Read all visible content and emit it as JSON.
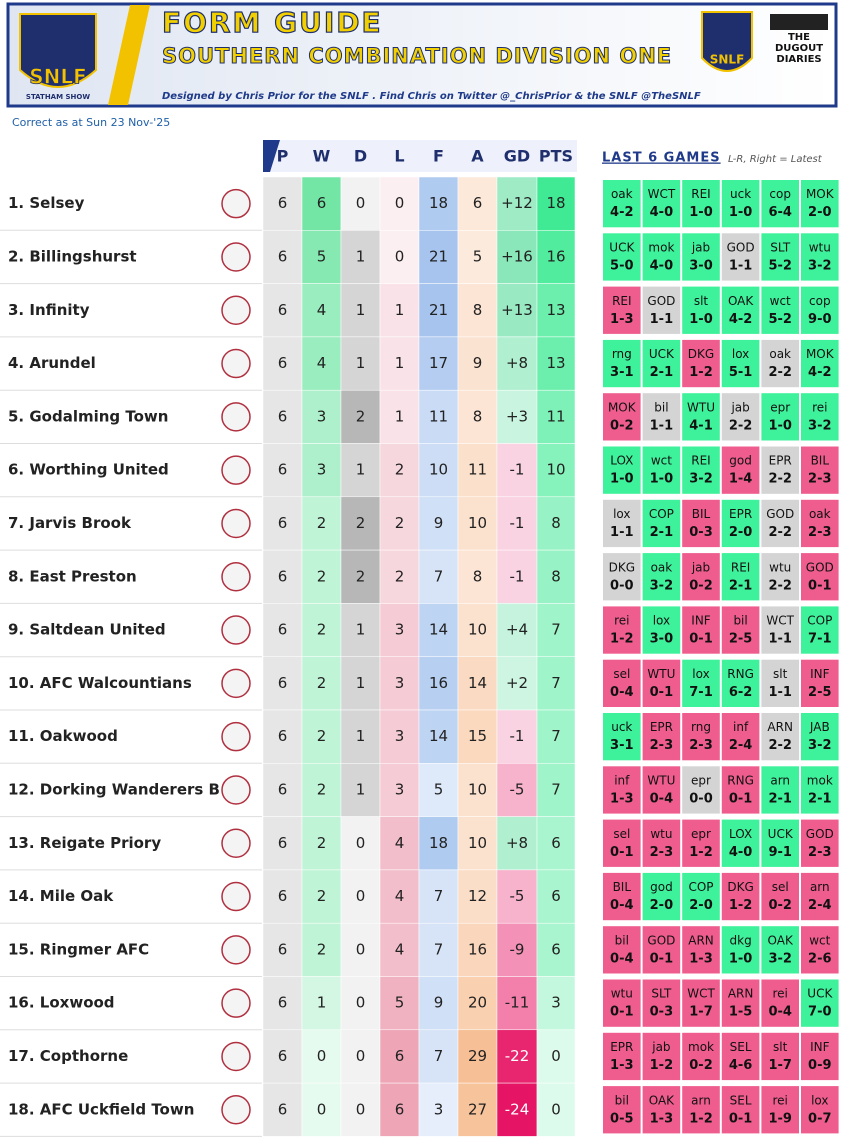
{
  "header": {
    "title": "FORM GUIDE",
    "subtitle": "SOUTHERN COMBINATION DIVISION ONE",
    "credit": "Designed by Chris Prior for the SNLF . Find Chris on Twitter @_ChrisPrior & the SNLF @TheSNLF",
    "logo_left": "SNLF",
    "logo_left_sub": "STATHAM SHOW",
    "logo_right": "SNLF",
    "logo_right2": "THE DUGOUT DIARIES"
  },
  "updated": "Correct as at Sun 23 Nov-'25",
  "columns": [
    "P",
    "W",
    "D",
    "L",
    "F",
    "A",
    "GD",
    "PTS"
  ],
  "last_games": {
    "title": "LAST 6 GAMES",
    "note": "L-R, Right = Latest"
  },
  "rows": [
    {
      "team": "1. Selsey",
      "stats": [
        6,
        6,
        0,
        0,
        18,
        6,
        "+12",
        18
      ],
      "games": [
        {
          "opp": "oak",
          "score": "4-2"
        },
        {
          "opp": "WCT",
          "score": "4-0"
        },
        {
          "opp": "REI",
          "score": "1-0"
        },
        {
          "opp": "uck",
          "score": "1-0"
        },
        {
          "opp": "cop",
          "score": "6-4"
        },
        {
          "opp": "MOK",
          "score": "2-0"
        }
      ]
    },
    {
      "team": "2. Billingshurst",
      "stats": [
        6,
        5,
        1,
        0,
        21,
        5,
        "+16",
        16
      ],
      "games": [
        {
          "opp": "UCK",
          "score": "5-0"
        },
        {
          "opp": "mok",
          "score": "4-0"
        },
        {
          "opp": "jab",
          "score": "3-0"
        },
        {
          "opp": "GOD",
          "score": "1-1"
        },
        {
          "opp": "SLT",
          "score": "5-2"
        },
        {
          "opp": "wtu",
          "score": "3-2"
        }
      ]
    },
    {
      "team": "3. Infinity",
      "stats": [
        6,
        4,
        1,
        1,
        21,
        8,
        "+13",
        13
      ],
      "games": [
        {
          "opp": "REI",
          "score": "1-3"
        },
        {
          "opp": "GOD",
          "score": "1-1"
        },
        {
          "opp": "slt",
          "score": "1-0"
        },
        {
          "opp": "OAK",
          "score": "4-2"
        },
        {
          "opp": "wct",
          "score": "5-2"
        },
        {
          "opp": "cop",
          "score": "9-0"
        }
      ]
    },
    {
      "team": "4. Arundel",
      "stats": [
        6,
        4,
        1,
        1,
        17,
        9,
        "+8",
        13
      ],
      "games": [
        {
          "opp": "rng",
          "score": "3-1"
        },
        {
          "opp": "UCK",
          "score": "2-1"
        },
        {
          "opp": "DKG",
          "score": "1-2"
        },
        {
          "opp": "lox",
          "score": "5-1"
        },
        {
          "opp": "oak",
          "score": "2-2"
        },
        {
          "opp": "MOK",
          "score": "4-2"
        }
      ]
    },
    {
      "team": "5. Godalming Town",
      "stats": [
        6,
        3,
        2,
        1,
        11,
        8,
        "+3",
        11
      ],
      "games": [
        {
          "opp": "MOK",
          "score": "0-2"
        },
        {
          "opp": "bil",
          "score": "1-1"
        },
        {
          "opp": "WTU",
          "score": "4-1"
        },
        {
          "opp": "jab",
          "score": "2-2"
        },
        {
          "opp": "epr",
          "score": "1-0"
        },
        {
          "opp": "rei",
          "score": "3-2"
        }
      ]
    },
    {
      "team": "6. Worthing United",
      "stats": [
        6,
        3,
        1,
        2,
        10,
        11,
        "-1",
        10
      ],
      "games": [
        {
          "opp": "LOX",
          "score": "1-0"
        },
        {
          "opp": "wct",
          "score": "1-0"
        },
        {
          "opp": "REI",
          "score": "3-2"
        },
        {
          "opp": "god",
          "score": "1-4"
        },
        {
          "opp": "EPR",
          "score": "2-2"
        },
        {
          "opp": "BIL",
          "score": "2-3"
        }
      ]
    },
    {
      "team": "7. Jarvis Brook",
      "stats": [
        6,
        2,
        2,
        2,
        9,
        10,
        "-1",
        8
      ],
      "games": [
        {
          "opp": "lox",
          "score": "1-1"
        },
        {
          "opp": "COP",
          "score": "2-1"
        },
        {
          "opp": "BIL",
          "score": "0-3"
        },
        {
          "opp": "EPR",
          "score": "2-0"
        },
        {
          "opp": "GOD",
          "score": "2-2"
        },
        {
          "opp": "oak",
          "score": "2-3"
        }
      ]
    },
    {
      "team": "8. East Preston",
      "stats": [
        6,
        2,
        2,
        2,
        7,
        8,
        "-1",
        8
      ],
      "games": [
        {
          "opp": "DKG",
          "score": "0-0"
        },
        {
          "opp": "oak",
          "score": "3-2"
        },
        {
          "opp": "jab",
          "score": "0-2"
        },
        {
          "opp": "REI",
          "score": "2-1"
        },
        {
          "opp": "wtu",
          "score": "2-2"
        },
        {
          "opp": "GOD",
          "score": "0-1"
        }
      ]
    },
    {
      "team": "9. Saltdean United",
      "stats": [
        6,
        2,
        1,
        3,
        14,
        10,
        "+4",
        7
      ],
      "games": [
        {
          "opp": "rei",
          "score": "1-2"
        },
        {
          "opp": "lox",
          "score": "3-0"
        },
        {
          "opp": "INF",
          "score": "0-1"
        },
        {
          "opp": "bil",
          "score": "2-5"
        },
        {
          "opp": "WCT",
          "score": "1-1"
        },
        {
          "opp": "COP",
          "score": "7-1"
        }
      ]
    },
    {
      "team": "10. AFC Walcountians",
      "stats": [
        6,
        2,
        1,
        3,
        16,
        14,
        "+2",
        7
      ],
      "games": [
        {
          "opp": "sel",
          "score": "0-4"
        },
        {
          "opp": "WTU",
          "score": "0-1"
        },
        {
          "opp": "lox",
          "score": "7-1"
        },
        {
          "opp": "RNG",
          "score": "6-2"
        },
        {
          "opp": "slt",
          "score": "1-1"
        },
        {
          "opp": "INF",
          "score": "2-5"
        }
      ]
    },
    {
      "team": "11. Oakwood",
      "stats": [
        6,
        2,
        1,
        3,
        14,
        15,
        "-1",
        7
      ],
      "games": [
        {
          "opp": "uck",
          "score": "3-1"
        },
        {
          "opp": "EPR",
          "score": "2-3"
        },
        {
          "opp": "rng",
          "score": "2-3"
        },
        {
          "opp": "inf",
          "score": "2-4"
        },
        {
          "opp": "ARN",
          "score": "2-2"
        },
        {
          "opp": "JAB",
          "score": "3-2"
        }
      ]
    },
    {
      "team": "12. Dorking Wanderers B",
      "stats": [
        6,
        2,
        1,
        3,
        5,
        10,
        "-5",
        7
      ],
      "games": [
        {
          "opp": "inf",
          "score": "1-3"
        },
        {
          "opp": "WTU",
          "score": "0-4"
        },
        {
          "opp": "epr",
          "score": "0-0"
        },
        {
          "opp": "RNG",
          "score": "0-1"
        },
        {
          "opp": "arn",
          "score": "2-1"
        },
        {
          "opp": "mok",
          "score": "2-1"
        }
      ]
    },
    {
      "team": "13. Reigate Priory",
      "stats": [
        6,
        2,
        0,
        4,
        18,
        10,
        "+8",
        6
      ],
      "games": [
        {
          "opp": "sel",
          "score": "0-1"
        },
        {
          "opp": "wtu",
          "score": "2-3"
        },
        {
          "opp": "epr",
          "score": "1-2"
        },
        {
          "opp": "LOX",
          "score": "4-0"
        },
        {
          "opp": "UCK",
          "score": "9-1"
        },
        {
          "opp": "GOD",
          "score": "2-3"
        }
      ]
    },
    {
      "team": "14. Mile Oak",
      "stats": [
        6,
        2,
        0,
        4,
        7,
        12,
        "-5",
        6
      ],
      "games": [
        {
          "opp": "BIL",
          "score": "0-4"
        },
        {
          "opp": "god",
          "score": "2-0"
        },
        {
          "opp": "COP",
          "score": "2-0"
        },
        {
          "opp": "DKG",
          "score": "1-2"
        },
        {
          "opp": "sel",
          "score": "0-2"
        },
        {
          "opp": "arn",
          "score": "2-4"
        }
      ]
    },
    {
      "team": "15. Ringmer AFC",
      "stats": [
        6,
        2,
        0,
        4,
        7,
        16,
        "-9",
        6
      ],
      "games": [
        {
          "opp": "bil",
          "score": "0-4"
        },
        {
          "opp": "GOD",
          "score": "0-1"
        },
        {
          "opp": "ARN",
          "score": "1-3"
        },
        {
          "opp": "dkg",
          "score": "1-0"
        },
        {
          "opp": "OAK",
          "score": "3-2"
        },
        {
          "opp": "wct",
          "score": "2-6"
        }
      ]
    },
    {
      "team": "16. Loxwood",
      "stats": [
        6,
        1,
        0,
        5,
        9,
        20,
        "-11",
        3
      ],
      "games": [
        {
          "opp": "wtu",
          "score": "0-1"
        },
        {
          "opp": "SLT",
          "score": "0-3"
        },
        {
          "opp": "WCT",
          "score": "1-7"
        },
        {
          "opp": "ARN",
          "score": "1-5"
        },
        {
          "opp": "rei",
          "score": "0-4"
        },
        {
          "opp": "UCK",
          "score": "7-0"
        }
      ]
    },
    {
      "team": "17. Copthorne",
      "stats": [
        6,
        0,
        0,
        6,
        7,
        29,
        "-22",
        0
      ],
      "games": [
        {
          "opp": "EPR",
          "score": "1-3"
        },
        {
          "opp": "jab",
          "score": "1-2"
        },
        {
          "opp": "mok",
          "score": "0-2"
        },
        {
          "opp": "SEL",
          "score": "4-6"
        },
        {
          "opp": "slt",
          "score": "1-7"
        },
        {
          "opp": "INF",
          "score": "0-9"
        }
      ]
    },
    {
      "team": "18. AFC Uckfield Town",
      "stats": [
        6,
        0,
        0,
        6,
        3,
        27,
        "-24",
        0
      ],
      "games": [
        {
          "opp": "bil",
          "score": "0-5"
        },
        {
          "opp": "OAK",
          "score": "1-3"
        },
        {
          "opp": "arn",
          "score": "1-2"
        },
        {
          "opp": "SEL",
          "score": "0-1"
        },
        {
          "opp": "rei",
          "score": "1-9"
        },
        {
          "opp": "lox",
          "score": "0-7"
        }
      ]
    }
  ]
}
